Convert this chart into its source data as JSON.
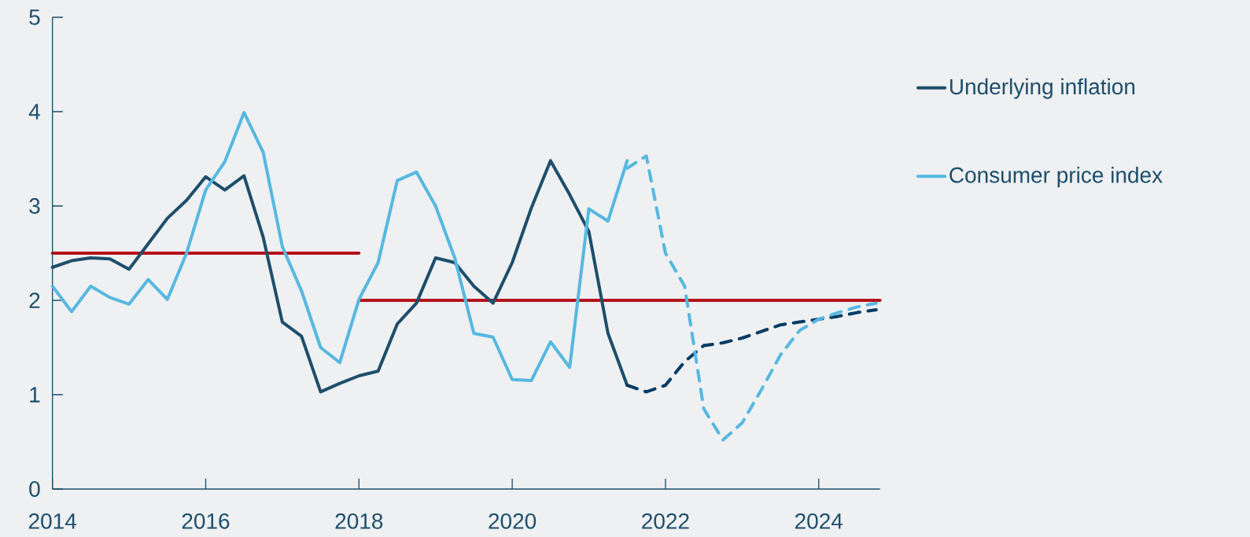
{
  "chart_data": {
    "type": "line",
    "x": [
      2014.0,
      2014.25,
      2014.5,
      2014.75,
      2015.0,
      2015.25,
      2015.5,
      2015.75,
      2016.0,
      2016.25,
      2016.5,
      2016.75,
      2017.0,
      2017.25,
      2017.5,
      2017.75,
      2018.0,
      2018.25,
      2018.5,
      2018.75,
      2019.0,
      2019.25,
      2019.5,
      2019.75,
      2020.0,
      2020.25,
      2020.5,
      2020.75,
      2021.0,
      2021.25,
      2021.5,
      2021.75,
      2022.0,
      2022.25,
      2022.5,
      2022.75,
      2023.0,
      2023.25,
      2023.5,
      2023.75,
      2024.0,
      2024.25,
      2024.5,
      2024.75
    ],
    "series": [
      {
        "x": [
          2014,
          2018
        ],
        "values": [
          2.5,
          2.5
        ],
        "color": "#b5121b",
        "line_style": "solid"
      },
      {
        "x": [
          2018,
          2024.8
        ],
        "values": [
          2.0,
          2.0
        ],
        "color": "#b5121b",
        "line_style": "solid"
      },
      {
        "name": "Underlying inflation",
        "color": "#1d4e6b",
        "line_style": "solid",
        "values": [
          2.35,
          2.42,
          2.45,
          2.44,
          2.33,
          2.6,
          2.87,
          3.06,
          3.31,
          3.17,
          3.32,
          2.67,
          1.77,
          1.62,
          1.03,
          1.12,
          1.2,
          1.25,
          1.75,
          1.97,
          2.45,
          2.4,
          2.15,
          1.97,
          2.4,
          2.98,
          3.48,
          3.12,
          2.73,
          1.65,
          1.1,
          null,
          null,
          null,
          null,
          null,
          null,
          null,
          null,
          null,
          null,
          null,
          null,
          null
        ]
      },
      {
        "name": "Consumer price index",
        "color": "#56b8e0",
        "line_style": "solid",
        "values": [
          2.15,
          1.88,
          2.15,
          2.03,
          1.96,
          2.22,
          2.01,
          2.5,
          3.17,
          3.47,
          3.99,
          3.57,
          2.57,
          2.1,
          1.5,
          1.34,
          2.01,
          2.4,
          3.27,
          3.36,
          3.0,
          2.45,
          1.65,
          1.61,
          1.16,
          1.15,
          1.56,
          1.29,
          2.97,
          2.84,
          3.48,
          null,
          null,
          null,
          null,
          null,
          null,
          null,
          null,
          null,
          null,
          null,
          null,
          null
        ]
      },
      {
        "color": "#003a63",
        "line_style": "dashed",
        "values": [
          null,
          null,
          null,
          null,
          null,
          null,
          null,
          null,
          null,
          null,
          null,
          null,
          null,
          null,
          null,
          null,
          null,
          null,
          null,
          null,
          null,
          null,
          null,
          null,
          null,
          null,
          null,
          null,
          null,
          null,
          1.1,
          1.03,
          1.1,
          1.35,
          1.52,
          1.55,
          1.6,
          1.67,
          1.74,
          1.77,
          1.8,
          1.83,
          1.87,
          1.9
        ]
      },
      {
        "color": "#56b8e0",
        "line_style": "dashed",
        "values": [
          null,
          null,
          null,
          null,
          null,
          null,
          null,
          null,
          null,
          null,
          null,
          null,
          null,
          null,
          null,
          null,
          null,
          null,
          null,
          null,
          null,
          null,
          null,
          null,
          null,
          null,
          null,
          null,
          null,
          null,
          3.4,
          3.53,
          2.5,
          2.15,
          0.85,
          0.52,
          0.7,
          1.05,
          1.42,
          1.68,
          1.8,
          1.87,
          1.93,
          1.97
        ]
      }
    ],
    "xlim": [
      2014,
      2024.8
    ],
    "ylim": [
      0,
      5
    ],
    "xticks": [
      2014,
      2016,
      2018,
      2020,
      2022,
      2024
    ],
    "yticks": [
      0,
      1,
      2,
      3,
      4,
      5
    ],
    "grid": false,
    "legend": "right"
  }
}
